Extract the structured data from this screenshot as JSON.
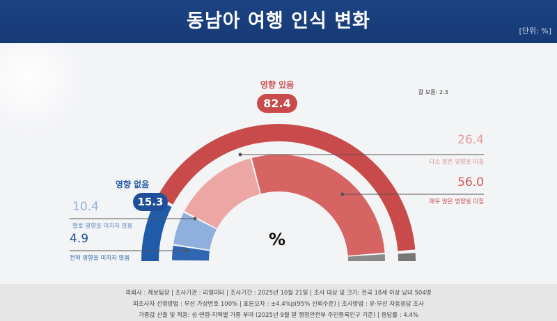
{
  "header": {
    "title": "동남아 여행 인식 변화",
    "unit": "[단위: %]"
  },
  "center_label": "%",
  "labels": {
    "dont_know": "잘 모름: 2.3"
  },
  "chart_data": {
    "type": "pie",
    "title": "동남아 여행 인식 변화",
    "unit": "%",
    "groups": [
      {
        "name": "영향 있음",
        "value": 82.4,
        "color": "#c94a4a"
      },
      {
        "name": "영향 없음",
        "value": 15.3,
        "color": "#1f5ba8"
      },
      {
        "name": "잘 모름",
        "value": 2.3,
        "color": "#777777"
      }
    ],
    "slices": [
      {
        "name": "전혀 영향을 미치지 않음",
        "value": 4.9,
        "group": "영향 없음",
        "color": "#2f66b3"
      },
      {
        "name": "별로 영향을 미치지 않음",
        "value": 10.4,
        "group": "영향 없음",
        "color": "#8fb0dc"
      },
      {
        "name": "다소 많은 영향을 미침",
        "value": 26.4,
        "group": "영향 있음",
        "color": "#eca7a5"
      },
      {
        "name": "매우 많은 영향을 미침",
        "value": 56.0,
        "group": "영향 있음",
        "color": "#d66463"
      }
    ]
  },
  "footer": {
    "line1": "의뢰사 : 제보팀장 | 조사기관 : 리얼미터 | 조사기간 : 2025년 10월 21일 | 조사 대상 및 크기: 전국 18세 이상 남녀 504명",
    "line2": "피조사자 선정방법 : 무선 가상번호 100% | 표본오차 : ±4.4%p(95% 신뢰수준) | 조사방법 : 유·무선 자동응답 조사",
    "line3": "가중값 산출 및 적용: 성·연령·지역별 가중 부여 (2025년 9월 말 행정안전부 주민등록인구 기준) | 응답률 : 4.4%"
  }
}
